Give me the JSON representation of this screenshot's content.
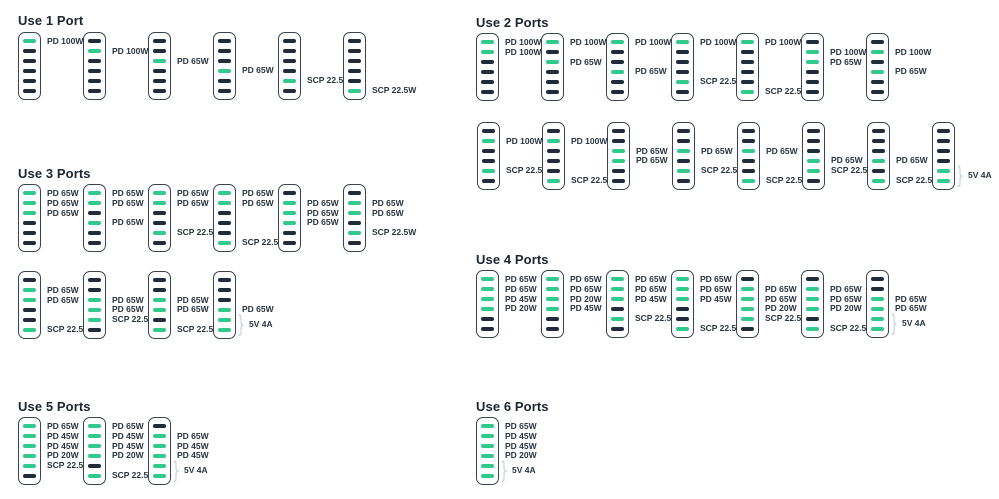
{
  "device": {
    "ports_per_charger": 6
  },
  "colors": {
    "port_active": "#31c98c",
    "port_inactive": "#212b39",
    "charger_border": "#3a444f",
    "label_text": "#2a3440",
    "title_text": "#1d2532",
    "bracket": "#ccd2d8",
    "background": "#ffffff"
  },
  "sections": [
    {
      "title": "Use 1 Port",
      "rows": [
        [
          {
            "active_ports": [
              1
            ],
            "labels": [
              {
                "port": 1,
                "text": "PD 100W"
              }
            ]
          },
          {
            "active_ports": [
              2
            ],
            "labels": [
              {
                "port": 2,
                "text": "PD 100W"
              }
            ]
          },
          {
            "active_ports": [
              3
            ],
            "labels": [
              {
                "port": 3,
                "text": "PD 65W"
              }
            ]
          },
          {
            "active_ports": [
              4
            ],
            "labels": [
              {
                "port": 4,
                "text": "PD 65W"
              }
            ]
          },
          {
            "active_ports": [
              5
            ],
            "labels": [
              {
                "port": 5,
                "text": "SCP 22.5W"
              }
            ]
          },
          {
            "active_ports": [
              6
            ],
            "labels": [
              {
                "port": 6,
                "text": "SCP 22.5W"
              }
            ]
          }
        ]
      ]
    },
    {
      "title": "Use 2 Ports",
      "rows": [
        [
          {
            "active_ports": [
              1,
              2
            ],
            "labels": [
              {
                "port": 1,
                "text": "PD 100W"
              },
              {
                "port": 2,
                "text": "PD 100W"
              }
            ]
          },
          {
            "active_ports": [
              1,
              3
            ],
            "labels": [
              {
                "port": 1,
                "text": "PD 100W"
              },
              {
                "port": 3,
                "text": "PD 65W"
              }
            ]
          },
          {
            "active_ports": [
              1,
              4
            ],
            "labels": [
              {
                "port": 1,
                "text": "PD 100W"
              },
              {
                "port": 4,
                "text": "PD 65W"
              }
            ]
          },
          {
            "active_ports": [
              1,
              5
            ],
            "labels": [
              {
                "port": 1,
                "text": "PD 100W"
              },
              {
                "port": 5,
                "text": "SCP 22.5W"
              }
            ]
          },
          {
            "active_ports": [
              1,
              6
            ],
            "labels": [
              {
                "port": 1,
                "text": "PD 100W"
              },
              {
                "port": 6,
                "text": "SCP 22.5W"
              }
            ]
          },
          {
            "active_ports": [
              2,
              3
            ],
            "labels": [
              {
                "port": 2,
                "text": "PD 100W"
              },
              {
                "port": 3,
                "text": "PD 65W"
              }
            ]
          },
          {
            "active_ports": [
              2,
              4
            ],
            "labels": [
              {
                "port": 2,
                "text": "PD 100W"
              },
              {
                "port": 4,
                "text": "PD 65W"
              }
            ]
          }
        ],
        [
          {
            "active_ports": [
              2,
              5
            ],
            "labels": [
              {
                "port": 2,
                "text": "PD 100W"
              },
              {
                "port": 5,
                "text": "SCP 22.5W"
              }
            ]
          },
          {
            "active_ports": [
              2,
              6
            ],
            "labels": [
              {
                "port": 2,
                "text": "PD 100W"
              },
              {
                "port": 6,
                "text": "SCP 22.5W"
              }
            ]
          },
          {
            "active_ports": [
              3,
              4
            ],
            "labels": [
              {
                "port": 3,
                "text": "PD 65W"
              },
              {
                "port": 4,
                "text": "PD 65W"
              }
            ]
          },
          {
            "active_ports": [
              3,
              5
            ],
            "labels": [
              {
                "port": 3,
                "text": "PD 65W"
              },
              {
                "port": 5,
                "text": "SCP 22.5W"
              }
            ]
          },
          {
            "active_ports": [
              3,
              6
            ],
            "labels": [
              {
                "port": 3,
                "text": "PD 65W"
              },
              {
                "port": 6,
                "text": "SCP 22.5W"
              }
            ]
          },
          {
            "active_ports": [
              4,
              5
            ],
            "labels": [
              {
                "port": 4,
                "text": "PD 65W"
              },
              {
                "port": 5,
                "text": "SCP 22.5W"
              }
            ]
          },
          {
            "active_ports": [
              4,
              6
            ],
            "labels": [
              {
                "port": 4,
                "text": "PD 65W"
              },
              {
                "port": 6,
                "text": "SCP 22.5W"
              }
            ]
          },
          {
            "active_ports": [
              5,
              6
            ],
            "labels": [],
            "bracket": {
              "ports": [
                5,
                6
              ],
              "text": "5V 4A"
            }
          }
        ]
      ]
    },
    {
      "title": "Use 3 Ports",
      "rows": [
        [
          {
            "active_ports": [
              1,
              2,
              3
            ],
            "labels": [
              {
                "port": 1,
                "text": "PD 65W"
              },
              {
                "port": 2,
                "text": "PD 65W"
              },
              {
                "port": 3,
                "text": "PD 65W"
              }
            ]
          },
          {
            "active_ports": [
              1,
              2,
              4
            ],
            "labels": [
              {
                "port": 1,
                "text": "PD 65W"
              },
              {
                "port": 2,
                "text": "PD 65W"
              },
              {
                "port": 4,
                "text": "PD 65W"
              }
            ]
          },
          {
            "active_ports": [
              1,
              2,
              5
            ],
            "labels": [
              {
                "port": 1,
                "text": "PD 65W"
              },
              {
                "port": 2,
                "text": "PD 65W"
              },
              {
                "port": 5,
                "text": "SCP 22.5W"
              }
            ]
          },
          {
            "active_ports": [
              1,
              2,
              6
            ],
            "labels": [
              {
                "port": 1,
                "text": "PD 65W"
              },
              {
                "port": 2,
                "text": "PD 65W"
              },
              {
                "port": 6,
                "text": "SCP 22.5W"
              }
            ]
          },
          {
            "active_ports": [
              2,
              3,
              4
            ],
            "labels": [
              {
                "port": 2,
                "text": "PD 65W"
              },
              {
                "port": 3,
                "text": "PD 65W"
              },
              {
                "port": 4,
                "text": "PD 65W"
              }
            ]
          },
          {
            "active_ports": [
              2,
              3,
              5
            ],
            "labels": [
              {
                "port": 2,
                "text": "PD 65W"
              },
              {
                "port": 3,
                "text": "PD 65W"
              },
              {
                "port": 5,
                "text": "SCP 22.5W"
              }
            ]
          }
        ],
        [
          {
            "active_ports": [
              2,
              3,
              6
            ],
            "labels": [
              {
                "port": 2,
                "text": "PD 65W"
              },
              {
                "port": 3,
                "text": "PD 65W"
              },
              {
                "port": 6,
                "text": "SCP 22.5W"
              }
            ]
          },
          {
            "active_ports": [
              3,
              4,
              5
            ],
            "labels": [
              {
                "port": 3,
                "text": "PD 65W"
              },
              {
                "port": 4,
                "text": "PD 65W"
              },
              {
                "port": 5,
                "text": "SCP 22.5W"
              }
            ]
          },
          {
            "active_ports": [
              3,
              4,
              6
            ],
            "labels": [
              {
                "port": 3,
                "text": "PD 65W"
              },
              {
                "port": 4,
                "text": "PD 65W"
              },
              {
                "port": 6,
                "text": "SCP 22.5W"
              }
            ]
          },
          {
            "active_ports": [
              4,
              5,
              6
            ],
            "labels": [
              {
                "port": 4,
                "text": "PD 65W"
              }
            ],
            "bracket": {
              "ports": [
                5,
                6
              ],
              "text": "5V 4A"
            }
          }
        ]
      ]
    },
    {
      "title": "Use 4 Ports",
      "rows": [
        [
          {
            "active_ports": [
              1,
              2,
              3,
              4
            ],
            "labels": [
              {
                "port": 1,
                "text": "PD 65W"
              },
              {
                "port": 2,
                "text": "PD 65W"
              },
              {
                "port": 3,
                "text": "PD 45W"
              },
              {
                "port": 4,
                "text": "PD 20W"
              }
            ]
          },
          {
            "active_ports": [
              1,
              2,
              3,
              4
            ],
            "labels": [
              {
                "port": 1,
                "text": "PD 65W"
              },
              {
                "port": 2,
                "text": "PD 65W"
              },
              {
                "port": 3,
                "text": "PD 20W"
              },
              {
                "port": 4,
                "text": "PD 45W"
              }
            ]
          },
          {
            "active_ports": [
              1,
              2,
              3,
              5
            ],
            "labels": [
              {
                "port": 1,
                "text": "PD 65W"
              },
              {
                "port": 2,
                "text": "PD 65W"
              },
              {
                "port": 3,
                "text": "PD 45W"
              },
              {
                "port": 5,
                "text": "SCP 22.5W"
              }
            ]
          },
          {
            "active_ports": [
              1,
              2,
              3,
              6
            ],
            "labels": [
              {
                "port": 1,
                "text": "PD 65W"
              },
              {
                "port": 2,
                "text": "PD 65W"
              },
              {
                "port": 3,
                "text": "PD 45W"
              },
              {
                "port": 6,
                "text": "SCP 22.5W"
              }
            ]
          },
          {
            "active_ports": [
              2,
              3,
              4,
              5
            ],
            "labels": [
              {
                "port": 2,
                "text": "PD 65W"
              },
              {
                "port": 3,
                "text": "PD 65W"
              },
              {
                "port": 4,
                "text": "PD 20W"
              },
              {
                "port": 5,
                "text": "SCP 22.5W"
              }
            ]
          },
          {
            "active_ports": [
              2,
              3,
              4,
              6
            ],
            "labels": [
              {
                "port": 2,
                "text": "PD 65W"
              },
              {
                "port": 3,
                "text": "PD 65W"
              },
              {
                "port": 4,
                "text": "PD 20W"
              },
              {
                "port": 6,
                "text": "SCP 22.5W"
              }
            ]
          },
          {
            "active_ports": [
              3,
              4,
              5,
              6
            ],
            "labels": [
              {
                "port": 3,
                "text": "PD 65W"
              },
              {
                "port": 4,
                "text": "PD 65W"
              }
            ],
            "bracket": {
              "ports": [
                5,
                6
              ],
              "text": "5V 4A"
            }
          }
        ]
      ]
    },
    {
      "title": "Use 5 Ports",
      "rows": [
        [
          {
            "active_ports": [
              1,
              2,
              3,
              4,
              5
            ],
            "labels": [
              {
                "port": 1,
                "text": "PD 65W"
              },
              {
                "port": 2,
                "text": "PD 45W"
              },
              {
                "port": 3,
                "text": "PD 45W"
              },
              {
                "port": 4,
                "text": "PD 20W"
              },
              {
                "port": 5,
                "text": "SCP 22.5W"
              }
            ]
          },
          {
            "active_ports": [
              1,
              2,
              3,
              4,
              6
            ],
            "labels": [
              {
                "port": 1,
                "text": "PD 65W"
              },
              {
                "port": 2,
                "text": "PD 45W"
              },
              {
                "port": 3,
                "text": "PD 45W"
              },
              {
                "port": 4,
                "text": "PD 20W"
              },
              {
                "port": 6,
                "text": "SCP 22.5W"
              }
            ]
          },
          {
            "active_ports": [
              2,
              3,
              4,
              5,
              6
            ],
            "labels": [
              {
                "port": 2,
                "text": "PD 65W"
              },
              {
                "port": 3,
                "text": "PD 45W"
              },
              {
                "port": 4,
                "text": "PD 45W"
              }
            ],
            "bracket": {
              "ports": [
                5,
                6
              ],
              "text": "5V 4A"
            }
          }
        ]
      ]
    },
    {
      "title": "Use 6 Ports",
      "rows": [
        [
          {
            "active_ports": [
              1,
              2,
              3,
              4,
              5,
              6
            ],
            "labels": [
              {
                "port": 1,
                "text": "PD 65W"
              },
              {
                "port": 2,
                "text": "PD 45W"
              },
              {
                "port": 3,
                "text": "PD 45W"
              },
              {
                "port": 4,
                "text": "PD 20W"
              }
            ],
            "bracket": {
              "ports": [
                5,
                6
              ],
              "text": "5V 4A"
            }
          }
        ]
      ]
    }
  ]
}
